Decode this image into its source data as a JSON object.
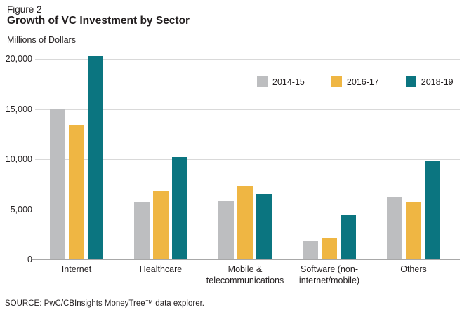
{
  "figure": {
    "figure_label": "Figure 2",
    "title": "Growth of VC Investment by Sector",
    "y_axis_title": "Millions of Dollars",
    "source": "SOURCE: PwC/CBInsights MoneyTree™ data explorer."
  },
  "colors": {
    "series_2014_15": "#bdbec0",
    "series_2016_17": "#efb643",
    "series_2018_19": "#0b7580",
    "gridline": "#d9d9d9",
    "axis_line": "#a8a8a8",
    "text": "#231f20"
  },
  "chart_data": {
    "type": "bar",
    "title": "Growth of VC Investment by Sector",
    "xlabel": "",
    "ylabel": "Millions of Dollars",
    "categories": [
      "Internet",
      "Healthcare",
      "Mobile & telecommunications",
      "Software (non-internet/mobile)",
      "Others"
    ],
    "categories_display": [
      [
        "Internet"
      ],
      [
        "Healthcare"
      ],
      [
        "Mobile &",
        "telecommunications"
      ],
      [
        "Software (non-",
        "internet/mobile)"
      ],
      [
        "Others"
      ]
    ],
    "series": [
      {
        "name": "2014-15",
        "color": "#bdbec0",
        "values": [
          15000,
          5700,
          5800,
          1800,
          6200
        ]
      },
      {
        "name": "2016-17",
        "color": "#efb643",
        "values": [
          13400,
          6800,
          7300,
          2200,
          5700
        ]
      },
      {
        "name": "2018-19",
        "color": "#0b7580",
        "values": [
          20300,
          10200,
          6500,
          4400,
          9800
        ]
      }
    ],
    "ylim": [
      0,
      20500
    ],
    "yticks": [
      0,
      5000,
      10000,
      15000,
      20000
    ],
    "ytick_labels": [
      "0",
      "5,000",
      "10,000",
      "15,000",
      "20,000"
    ],
    "grid": true,
    "legend_position": "inside-upper-right"
  }
}
